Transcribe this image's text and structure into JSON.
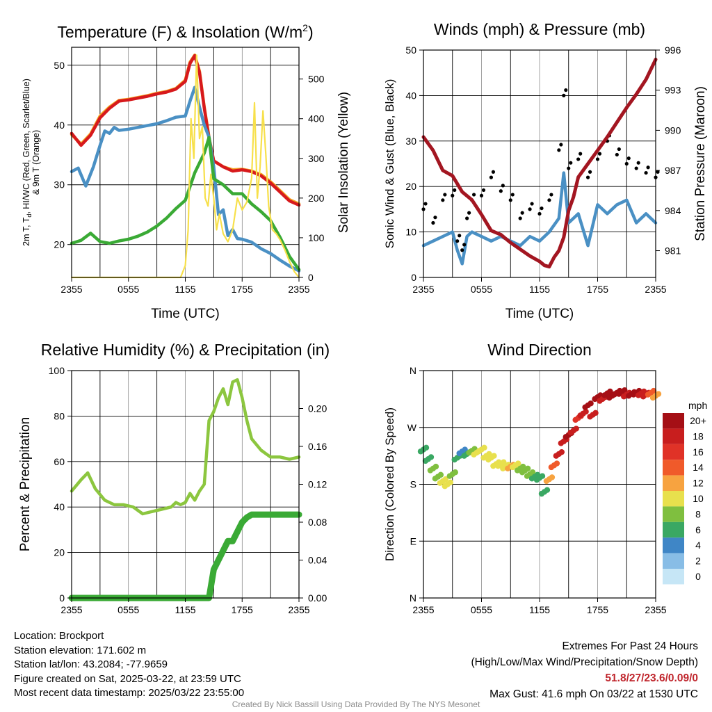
{
  "chart_data": [
    {
      "type": "line",
      "title": "Temperature (F) & Insolation (W/m",
      "title_sup": "2",
      "title_end": ")",
      "xlabel": "Time (UTC)",
      "ylabel_left_line1": "2m T, T",
      "ylabel_left_line1_sub": "d",
      "ylabel_left_line1_end": ", HI/WC (Red, Green, Scarlet/Blue)",
      "ylabel_left_line2": "& 9m T (Orange)",
      "ylabel_right": "Solar Insolation (Yellow)",
      "x_ticks": [
        "2355",
        "0555",
        "1155",
        "1755",
        "2355"
      ],
      "xlim": [
        0,
        24
      ],
      "ylim": [
        14.5,
        53
      ],
      "y_ticks": [
        "20",
        "30",
        "40",
        "50"
      ],
      "y_tick_values": [
        20,
        30,
        40,
        50
      ],
      "ylim_right": [
        0,
        580
      ],
      "y_ticks_right": [
        "0",
        "100",
        "200",
        "300",
        "400",
        "500"
      ],
      "y_tick_values_right": [
        0,
        100,
        200,
        300,
        400,
        500
      ],
      "series": [
        {
          "color": "#f5a623",
          "x": [
            0,
            1,
            2,
            3,
            4,
            5,
            6,
            7,
            8,
            9,
            10,
            11,
            12,
            12.5,
            13,
            13.5,
            14,
            14.5,
            15,
            16,
            17,
            18,
            19,
            20,
            21,
            22,
            23,
            24
          ],
          "y": [
            38.4,
            36.8,
            38.5,
            41.5,
            43,
            44.1,
            44.3,
            44.6,
            44.9,
            45.3,
            45.6,
            46.1,
            47.5,
            50.5,
            51.7,
            49,
            43,
            38,
            34,
            33,
            32.5,
            32.6,
            32.3,
            31.7,
            30.5,
            29,
            27.5,
            26.8
          ]
        },
        {
          "color": "#d7191c",
          "x": [
            0,
            1,
            2,
            3,
            4,
            5,
            6,
            7,
            8,
            9,
            10,
            11,
            12,
            12.5,
            13,
            13.5,
            14,
            14.5,
            15,
            16,
            17,
            18,
            19,
            20,
            21,
            22,
            23,
            24
          ],
          "y": [
            38.6,
            36.6,
            38.3,
            41.2,
            42.8,
            44,
            44.2,
            44.5,
            44.8,
            45.2,
            45.5,
            46,
            47.3,
            50.3,
            51.6,
            48.8,
            42.8,
            37.8,
            34,
            33,
            32.3,
            32.5,
            32.2,
            31.5,
            30.3,
            28.8,
            27.3,
            26.6
          ]
        },
        {
          "color": "#4a90c4",
          "x": [
            0,
            0.7,
            1.5,
            2.3,
            3,
            3.5,
            4,
            4.5,
            5,
            6,
            7,
            8,
            9,
            10,
            11,
            12,
            12.5,
            13,
            13.5,
            14,
            14.5,
            15,
            15.5,
            16,
            16.5,
            17,
            17.5,
            18,
            19,
            20,
            21,
            22,
            23,
            24
          ],
          "y": [
            32.2,
            32.8,
            29.8,
            33,
            36.6,
            39,
            38.6,
            39.6,
            39.1,
            39.3,
            39.6,
            39.9,
            40.2,
            40.7,
            41.3,
            41.5,
            44,
            46.3,
            43,
            40,
            38,
            33,
            25,
            25.8,
            21.5,
            22.5,
            21,
            20.9,
            20.4,
            19.3,
            18.5,
            17.4,
            16.4,
            15.6
          ]
        },
        {
          "color": "#3aaa35",
          "x": [
            0,
            1,
            2,
            3,
            4,
            5,
            6,
            7,
            8,
            9,
            10,
            11,
            12,
            13,
            14,
            14.5,
            15,
            16,
            17,
            18,
            19,
            20,
            21,
            22,
            23,
            24
          ],
          "y": [
            20.2,
            20.7,
            21.9,
            20.5,
            20.2,
            20.6,
            20.9,
            21.4,
            22.1,
            23.1,
            24.4,
            26,
            27.4,
            32,
            35.3,
            37.9,
            31,
            30,
            28.5,
            28.5,
            26.8,
            25.5,
            24,
            21.2,
            18,
            15.8
          ]
        },
        {
          "color": "#f7e04b",
          "x": [
            0,
            5,
            10,
            11.5,
            12,
            12.3,
            12.6,
            12.9,
            13.2,
            13.5,
            13.8,
            14.1,
            14.4,
            14.7,
            15,
            15.3,
            15.6,
            16,
            16.5,
            17,
            17.5,
            18,
            18.5,
            19,
            19.3,
            19.6,
            19.9,
            20.2,
            20.5,
            20.8,
            21.2,
            21.6,
            22,
            22.5,
            23,
            23.5,
            24
          ],
          "y_right": [
            0,
            0,
            0,
            0,
            30,
            120,
            400,
            300,
            560,
            350,
            380,
            200,
            180,
            260,
            200,
            120,
            160,
            110,
            90,
            120,
            200,
            170,
            190,
            250,
            440,
            200,
            280,
            420,
            310,
            180,
            120,
            110,
            95,
            70,
            40,
            15,
            0
          ]
        }
      ]
    },
    {
      "type": "line",
      "title": "Winds (mph) & Pressure (mb)",
      "xlabel": "Time (UTC)",
      "ylabel": "Sonic Wind & Gust (Blue, Black)",
      "ylabel_right": "Station Pressure (Maroon)",
      "x_ticks": [
        "2355",
        "0555",
        "1155",
        "1755",
        "2355"
      ],
      "xlim": [
        0,
        24
      ],
      "ylim": [
        0,
        50
      ],
      "y_ticks": [
        "0",
        "10",
        "20",
        "30",
        "40",
        "50"
      ],
      "y_tick_values": [
        0,
        10,
        20,
        30,
        40,
        50
      ],
      "ylim_right": [
        979,
        996
      ],
      "y_ticks_right": [
        "981",
        "984",
        "987",
        "990",
        "993",
        "996"
      ],
      "y_tick_values_right": [
        981,
        984,
        987,
        990,
        993,
        996
      ],
      "series": [
        {
          "color": "#4a90c4",
          "x": [
            0,
            1,
            2,
            3,
            3.5,
            4,
            4.5,
            5,
            6,
            7,
            8,
            9,
            10,
            11,
            12,
            13,
            14,
            14.5,
            15,
            16,
            17,
            18,
            19,
            20,
            21,
            22,
            23,
            24
          ],
          "y": [
            7,
            8,
            9,
            10,
            6,
            3,
            9,
            10,
            9,
            8,
            9,
            8,
            7,
            9,
            8,
            10,
            13,
            23,
            12,
            14,
            7,
            16,
            14,
            16,
            17,
            12,
            14,
            12
          ]
        },
        {
          "color": "#000000",
          "x": [
            0,
            1,
            2,
            3,
            3.5,
            4,
            4.5,
            5,
            6,
            7,
            8,
            9,
            10,
            11,
            12,
            13,
            14,
            14.5,
            15,
            16,
            17,
            18,
            19,
            20,
            21,
            22,
            23,
            24
          ],
          "y": [
            15,
            12,
            17,
            18,
            8,
            6,
            13,
            17,
            18,
            22,
            19,
            17,
            13,
            15,
            14,
            17,
            28,
            40,
            24,
            26,
            22,
            26,
            30,
            27,
            25,
            24,
            23,
            22
          ]
        },
        {
          "color": "#a31621",
          "x": [
            0,
            1,
            2,
            3,
            4,
            5,
            6,
            7,
            8,
            9,
            10,
            11,
            12,
            12.5,
            13,
            13.5,
            14,
            14.5,
            15,
            15.5,
            16,
            17,
            18,
            19,
            20,
            21,
            22,
            23,
            24
          ],
          "y_right": [
            989.5,
            988.5,
            987,
            986.6,
            985.4,
            984.8,
            983.7,
            982.5,
            982.2,
            981.6,
            981.1,
            980.6,
            980.2,
            979.9,
            979.8,
            980.5,
            981,
            982,
            984,
            985,
            986.5,
            987.5,
            988.5,
            989.5,
            990.6,
            991.7,
            992.7,
            993.8,
            995.3
          ]
        }
      ]
    },
    {
      "type": "line",
      "title": "Relative Humidity (%) & Precipitation (in)",
      "ylabel": "Percent & Precipitation",
      "x_ticks": [
        "2355",
        "0555",
        "1155",
        "1755",
        "2355"
      ],
      "xlim": [
        0,
        24
      ],
      "ylim": [
        0,
        100
      ],
      "y_ticks": [
        "0",
        "20",
        "40",
        "60",
        "80",
        "100"
      ],
      "y_tick_values": [
        0,
        20,
        40,
        60,
        80,
        100
      ],
      "ylim_right": [
        0,
        0.24
      ],
      "y_ticks_right": [
        "0.00",
        "0.04",
        "0.08",
        "0.12",
        "0.16",
        "0.20"
      ],
      "y_tick_values_right": [
        0,
        0.04,
        0.08,
        0.12,
        0.16,
        0.2
      ],
      "series": [
        {
          "color": "#8cc63f",
          "x": [
            0,
            1,
            1.7,
            2.5,
            3.5,
            4.5,
            5.5,
            6.5,
            7.5,
            8.5,
            9.5,
            10.5,
            11,
            11.5,
            12,
            12.5,
            13,
            13.5,
            14,
            14.5,
            15,
            15.5,
            16,
            16.5,
            17,
            17.5,
            18,
            18.5,
            19,
            20,
            21,
            22,
            23,
            24
          ],
          "y": [
            47,
            52,
            55,
            48,
            43,
            41,
            41,
            40,
            37,
            38,
            39,
            40,
            42,
            41,
            42,
            46,
            43,
            47,
            50,
            78,
            82,
            88,
            92,
            85,
            95,
            96,
            88,
            78,
            70,
            65,
            62,
            62,
            61,
            62
          ]
        },
        {
          "color": "#3aaa35",
          "x": [
            0,
            2,
            4,
            6,
            8,
            10,
            12,
            13,
            14,
            14.5,
            15,
            15.5,
            16,
            16.5,
            17,
            17.5,
            18,
            18.5,
            19,
            20,
            21,
            22,
            23,
            24
          ],
          "y_right": [
            0,
            0,
            0,
            0,
            0,
            0,
            0,
            0,
            0,
            0,
            0.03,
            0.04,
            0.05,
            0.06,
            0.06,
            0.07,
            0.08,
            0.085,
            0.088,
            0.088,
            0.088,
            0.088,
            0.088,
            0.088
          ]
        }
      ]
    },
    {
      "type": "scatter",
      "title": "Wind Direction",
      "ylabel": "Direction (Colored By Speed)",
      "x_ticks": [
        "2355",
        "0555",
        "1155",
        "1755",
        "2355"
      ],
      "xlim": [
        0,
        24
      ],
      "ylim": [
        0,
        360
      ],
      "y_ticks": [
        "N",
        "E",
        "S",
        "W",
        "N"
      ],
      "y_tick_values": [
        0,
        90,
        180,
        270,
        360
      ],
      "legend_title": "mph",
      "legend_labels": [
        "20+",
        "18",
        "16",
        "14",
        "12",
        "10",
        "8",
        "6",
        "4",
        "2",
        "0"
      ],
      "legend_colors": [
        "#a50f15",
        "#c81e1e",
        "#e03227",
        "#f05a2a",
        "#f7a340",
        "#e8e04d",
        "#7fbf3f",
        "#3aa863",
        "#3f86c6",
        "#88bde6",
        "#c6e6f6"
      ],
      "points_x": [
        0,
        0.5,
        1,
        1.5,
        2,
        2.5,
        3,
        3.5,
        4,
        4.5,
        5,
        5.5,
        6,
        6.5,
        7,
        7.5,
        8,
        8.5,
        9,
        9.5,
        10,
        10.5,
        11,
        11.5,
        12,
        12.5,
        13,
        13.5,
        14,
        14.5,
        15,
        15.5,
        16,
        16.5,
        17,
        17.5,
        18,
        18.5,
        19,
        19.5,
        20,
        20.5,
        21,
        21.5,
        22,
        22.5,
        23,
        23.5,
        24
      ],
      "points_y": [
        235,
        220,
        205,
        192,
        185,
        180,
        196,
        222,
        232,
        228,
        233,
        230,
        235,
        225,
        222,
        212,
        212,
        208,
        208,
        210,
        205,
        202,
        196,
        192,
        190,
        168,
        188,
        210,
        228,
        248,
        258,
        265,
        285,
        292,
        305,
        290,
        318,
        315,
        324,
        320,
        325,
        326,
        322,
        323,
        325,
        324,
        322,
        325,
        320
      ],
      "points_speed": [
        6,
        6,
        7,
        8,
        9,
        10,
        8,
        5,
        4,
        6,
        8,
        9,
        9,
        10,
        10,
        10,
        10,
        10,
        11,
        9,
        8,
        7,
        7,
        6,
        6,
        6,
        11,
        14,
        18,
        18,
        20,
        17,
        16,
        18,
        20,
        18,
        19,
        18,
        20,
        19,
        20,
        19,
        18,
        20,
        19,
        17,
        18,
        13,
        11
      ]
    }
  ],
  "info_left": [
    "Location: Brockport",
    "Station elevation: 171.602 m",
    "Station lat/lon: 43.2084; -77.9659",
    "Figure created on Sat, 2025-03-22, at 23:59 UTC",
    "Most recent data timestamp: 2025/03/22 23:55:00"
  ],
  "info_right": {
    "line1": "Extremes For Past 24 Hours",
    "line2": "(High/Low/Max Wind/Precipitation/Snow Depth)",
    "values": "51.8/27/23.6/0.09/0",
    "gust": "Max Gust: 41.6 mph On 03/22 at 1530 UTC"
  },
  "credit": "Created By Nick Bassill Using Data Provided By The NYS Mesonet"
}
